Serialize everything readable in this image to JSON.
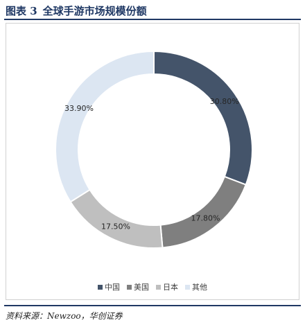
{
  "figure": {
    "label": "图表 3",
    "title": "全球手游市场规模份额",
    "source": "资料来源：Newzoo，华创证券"
  },
  "chart_data": {
    "type": "pie",
    "variant": "donut",
    "title": "",
    "categories": [
      "中国",
      "美国",
      "日本",
      "其他"
    ],
    "values": [
      30.8,
      17.8,
      17.5,
      33.9
    ],
    "data_labels": [
      "30.80%",
      "17.80%",
      "17.50%",
      "33.90%"
    ],
    "colors": [
      "#44546a",
      "#7f7f7f",
      "#bfbfbf",
      "#dce6f2"
    ],
    "legend_position": "bottom"
  }
}
